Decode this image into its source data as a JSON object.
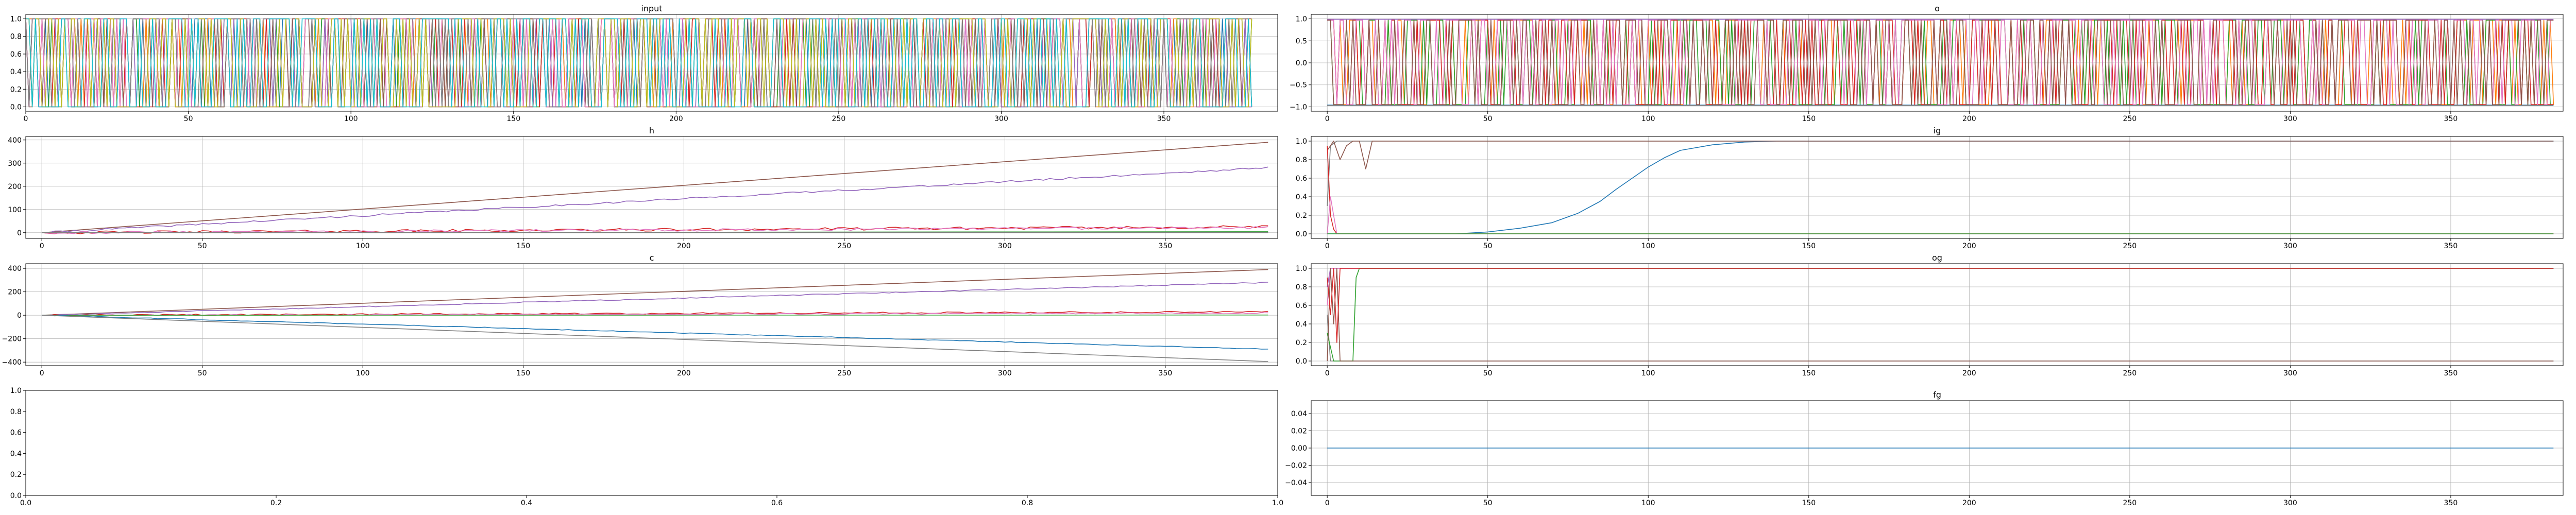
{
  "chart_data": [
    {
      "id": "input",
      "type": "line",
      "title": "input",
      "xlabel": "",
      "ylabel": "",
      "xlim": [
        0,
        385
      ],
      "ylim": [
        -0.05,
        1.05
      ],
      "xticks": [
        0,
        50,
        100,
        150,
        200,
        250,
        300,
        350
      ],
      "yticks": [
        0.0,
        0.2,
        0.4,
        0.6,
        0.8,
        1.0
      ],
      "ytick_labels": [
        "0.0",
        "0.2",
        "0.4",
        "0.6",
        "0.8",
        "1.0"
      ],
      "grid": true,
      "x_range": [
        0,
        377
      ],
      "series": [
        {
          "style": "binary",
          "color": "#1f77b4",
          "seed": 11,
          "p": 0.5
        },
        {
          "style": "binary",
          "color": "#ff7f0e",
          "seed": 12,
          "p": 0.5
        },
        {
          "style": "binary",
          "color": "#2ca02c",
          "seed": 13,
          "p": 0.5
        },
        {
          "style": "binary",
          "color": "#d62728",
          "seed": 14,
          "p": 0.5
        },
        {
          "style": "binary",
          "color": "#9467bd",
          "seed": 15,
          "p": 0.5
        },
        {
          "style": "binary",
          "color": "#8c564b",
          "seed": 16,
          "p": 0.5
        },
        {
          "style": "binary",
          "color": "#e377c2",
          "seed": 17,
          "p": 0.5
        },
        {
          "style": "binary",
          "color": "#7f7f7f",
          "seed": 18,
          "p": 0.5
        },
        {
          "style": "binary",
          "color": "#bcbd22",
          "seed": 19,
          "p": 0.5
        },
        {
          "style": "binary",
          "color": "#17becf",
          "seed": 20,
          "p": 0.5
        }
      ]
    },
    {
      "id": "o",
      "type": "line",
      "title": "o",
      "xlabel": "",
      "ylabel": "",
      "xlim": [
        -5,
        385
      ],
      "ylim": [
        -1.1,
        1.1
      ],
      "xticks": [
        0,
        50,
        100,
        150,
        200,
        250,
        300,
        350
      ],
      "yticks": [
        -1.0,
        -0.5,
        0.0,
        0.5,
        1.0
      ],
      "ytick_labels": [
        "−1.0",
        "−0.5",
        "0.0",
        "0.5",
        "1.0"
      ],
      "grid": true,
      "x_range": [
        0,
        382
      ],
      "series": [
        {
          "style": "flat",
          "value": -0.96,
          "color": "#1f77b4"
        },
        {
          "style": "flat",
          "value": 0.99,
          "color": "#9467bd"
        },
        {
          "style": "flat",
          "value": -0.97,
          "color": "#7f7f7f"
        },
        {
          "style": "binary",
          "color": "#ff7f0e",
          "seed": 31,
          "p": 0.55,
          "lo": -0.95,
          "hi": 0.97
        },
        {
          "style": "binary",
          "color": "#2ca02c",
          "seed": 32,
          "p": 0.45,
          "lo": -0.95,
          "hi": 0.97
        },
        {
          "style": "binary",
          "color": "#d62728",
          "seed": 33,
          "p": 0.5,
          "lo": -0.95,
          "hi": 0.97
        },
        {
          "style": "binary",
          "color": "#e377c2",
          "seed": 34,
          "p": 0.6,
          "lo": -0.95,
          "hi": 0.97
        },
        {
          "style": "binary",
          "color": "#8c564b",
          "seed": 35,
          "p": 0.5,
          "lo": -0.95,
          "hi": 0.97
        }
      ]
    },
    {
      "id": "h",
      "type": "line",
      "title": "h",
      "xlabel": "",
      "ylabel": "",
      "xlim": [
        -5,
        385
      ],
      "ylim": [
        -25,
        415
      ],
      "xticks": [
        0,
        50,
        100,
        150,
        200,
        250,
        300,
        350
      ],
      "yticks": [
        0,
        100,
        200,
        300,
        400
      ],
      "ytick_labels": [
        "0",
        "100",
        "200",
        "300",
        "400"
      ],
      "grid": true,
      "x_range": [
        0,
        382
      ],
      "series": [
        {
          "style": "lin",
          "start": 0,
          "end": 2,
          "color": "#1f77b4"
        },
        {
          "style": "lin",
          "start": 0,
          "end": 4,
          "color": "#2ca02c"
        },
        {
          "style": "lin",
          "start": 0,
          "end": 390,
          "color": "#8c564b"
        },
        {
          "style": "lin",
          "start": 0,
          "end": 280,
          "color": "#9467bd",
          "noise": 4,
          "seed": 41
        },
        {
          "style": "lin",
          "start": 0,
          "end": 25,
          "color": "#d62728",
          "noise": 6,
          "seed": 42
        },
        {
          "style": "lin",
          "start": 0,
          "end": 22,
          "color": "#e377c2",
          "noise": 5,
          "seed": 43
        },
        {
          "style": "lin",
          "start": 0,
          "end": 0,
          "color": "#7f7f7f"
        }
      ]
    },
    {
      "id": "ig",
      "type": "line",
      "title": "ig",
      "xlabel": "",
      "ylabel": "",
      "xlim": [
        -5,
        385
      ],
      "ylim": [
        -0.05,
        1.05
      ],
      "xticks": [
        0,
        50,
        100,
        150,
        200,
        250,
        300,
        350
      ],
      "yticks": [
        0.0,
        0.2,
        0.4,
        0.6,
        0.8,
        1.0
      ],
      "ytick_labels": [
        "0.0",
        "0.2",
        "0.4",
        "0.6",
        "0.8",
        "1.0"
      ],
      "grid": true,
      "x_range": [
        0,
        382
      ],
      "series": [
        {
          "style": "points",
          "color": "#7f7f7f",
          "x": [
            0,
            1,
            3,
            5,
            382
          ],
          "y": [
            0.3,
            0.95,
            1.0,
            1.0,
            1.0
          ]
        },
        {
          "style": "points",
          "color": "#1f77b4",
          "x": [
            0,
            40,
            50,
            60,
            70,
            78,
            85,
            90,
            95,
            100,
            105,
            110,
            120,
            130,
            140,
            150,
            382
          ],
          "y": [
            0,
            0,
            0.02,
            0.06,
            0.12,
            0.22,
            0.35,
            0.48,
            0.6,
            0.72,
            0.82,
            0.9,
            0.96,
            0.99,
            1.0,
            1.0,
            1.0
          ]
        },
        {
          "style": "points",
          "color": "#8c564b",
          "x": [
            0,
            2,
            4,
            6,
            8,
            10,
            12,
            14,
            382
          ],
          "y": [
            0.9,
            1.0,
            0.8,
            0.95,
            1.0,
            1.0,
            0.7,
            1.0,
            1.0
          ]
        },
        {
          "style": "points",
          "color": "#d62728",
          "x": [
            0,
            1,
            2,
            3,
            4,
            5,
            382
          ],
          "y": [
            0.95,
            0.2,
            0.05,
            0.0,
            0.0,
            0.0,
            0.0
          ]
        },
        {
          "style": "points",
          "color": "#e377c2",
          "x": [
            0,
            1,
            3,
            5,
            382
          ],
          "y": [
            0.0,
            0.4,
            0.0,
            0.0,
            0.0
          ]
        },
        {
          "style": "points",
          "color": "#2ca02c",
          "x": [
            0,
            2,
            4,
            382
          ],
          "y": [
            0.0,
            0.0,
            0.0,
            0.0
          ]
        }
      ]
    },
    {
      "id": "c",
      "type": "line",
      "title": "c",
      "xlabel": "",
      "ylabel": "",
      "xlim": [
        -5,
        385
      ],
      "ylim": [
        -430,
        440
      ],
      "xticks": [
        0,
        50,
        100,
        150,
        200,
        250,
        300,
        350
      ],
      "yticks": [
        -400,
        -200,
        0,
        200,
        400
      ],
      "ytick_labels": [
        "−400",
        "−200",
        "0",
        "200",
        "400"
      ],
      "grid": true,
      "x_range": [
        0,
        382
      ],
      "series": [
        {
          "style": "lin",
          "start": 0,
          "end": 390,
          "color": "#8c564b"
        },
        {
          "style": "lin",
          "start": 0,
          "end": 280,
          "color": "#9467bd",
          "noise": 4,
          "seed": 51
        },
        {
          "style": "lin",
          "start": 0,
          "end": 30,
          "color": "#d62728",
          "noise": 6,
          "seed": 52
        },
        {
          "style": "lin",
          "start": 0,
          "end": 18,
          "color": "#e377c2",
          "noise": 5,
          "seed": 53
        },
        {
          "style": "lin",
          "start": 0,
          "end": 2,
          "color": "#2ca02c"
        },
        {
          "style": "lin",
          "start": 0,
          "end": -290,
          "color": "#1f77b4",
          "noise": 3,
          "seed": 54
        },
        {
          "style": "lin",
          "start": 0,
          "end": -395,
          "color": "#7f7f7f"
        }
      ]
    },
    {
      "id": "og",
      "type": "line",
      "title": "og",
      "xlabel": "",
      "ylabel": "",
      "xlim": [
        -5,
        385
      ],
      "ylim": [
        -0.05,
        1.05
      ],
      "xticks": [
        0,
        50,
        100,
        150,
        200,
        250,
        300,
        350
      ],
      "yticks": [
        0.0,
        0.2,
        0.4,
        0.6,
        0.8,
        1.0
      ],
      "ytick_labels": [
        "0.0",
        "0.2",
        "0.4",
        "0.6",
        "0.8",
        "1.0"
      ],
      "grid": true,
      "x_range": [
        0,
        382
      ],
      "series": [
        {
          "style": "points",
          "color": "#7f7f7f",
          "x": [
            0,
            1,
            2,
            382
          ],
          "y": [
            0.5,
            0.0,
            0.0,
            0.0
          ]
        },
        {
          "style": "points",
          "color": "#9467bd",
          "x": [
            0,
            1,
            2,
            382
          ],
          "y": [
            0.8,
            1.0,
            1.0,
            1.0
          ]
        },
        {
          "style": "points",
          "color": "#e377c2",
          "x": [
            0,
            1,
            2,
            382
          ],
          "y": [
            0.6,
            1.0,
            1.0,
            1.0
          ]
        },
        {
          "style": "points",
          "color": "#2ca02c",
          "x": [
            0,
            2,
            4,
            6,
            8,
            9,
            10,
            11,
            12,
            13,
            382
          ],
          "y": [
            0.3,
            0.0,
            0.0,
            0.0,
            0.0,
            0.9,
            1.0,
            1.0,
            1.0,
            1.0,
            1.0
          ]
        },
        {
          "style": "points",
          "color": "#8c564b",
          "x": [
            0,
            1,
            2,
            3,
            4,
            5,
            382
          ],
          "y": [
            0.0,
            1.0,
            0.4,
            1.0,
            0.0,
            0.0,
            0.0
          ]
        },
        {
          "style": "points",
          "color": "#d62728",
          "x": [
            0,
            1,
            2,
            3,
            4,
            5,
            6,
            382
          ],
          "y": [
            0.9,
            0.5,
            1.0,
            0.2,
            1.0,
            1.0,
            1.0,
            1.0
          ]
        }
      ]
    },
    {
      "id": "empty",
      "type": "line",
      "title": "",
      "xlabel": "",
      "ylabel": "",
      "xlim": [
        0.0,
        1.0
      ],
      "ylim": [
        0.0,
        1.0
      ],
      "xticks": [
        0.0,
        0.2,
        0.4,
        0.6,
        0.8,
        1.0
      ],
      "xtick_labels": [
        "0.0",
        "0.2",
        "0.4",
        "0.6",
        "0.8",
        "1.0"
      ],
      "yticks": [
        0.0,
        0.2,
        0.4,
        0.6,
        0.8,
        1.0
      ],
      "ytick_labels": [
        "0.0",
        "0.2",
        "0.4",
        "0.6",
        "0.8",
        "1.0"
      ],
      "grid": false,
      "series": []
    },
    {
      "id": "fg",
      "type": "line",
      "title": "fg",
      "xlabel": "",
      "ylabel": "",
      "xlim": [
        -5,
        385
      ],
      "ylim": [
        -0.055,
        0.055
      ],
      "xticks": [
        0,
        50,
        100,
        150,
        200,
        250,
        300,
        350
      ],
      "yticks": [
        -0.04,
        -0.02,
        0.0,
        0.02,
        0.04
      ],
      "ytick_labels": [
        "−0.04",
        "−0.02",
        "0.00",
        "0.02",
        "0.04"
      ],
      "grid": true,
      "x_range": [
        0,
        382
      ],
      "series": [
        {
          "style": "flat",
          "value": 0.0,
          "color": "#1f77b4"
        }
      ]
    }
  ]
}
